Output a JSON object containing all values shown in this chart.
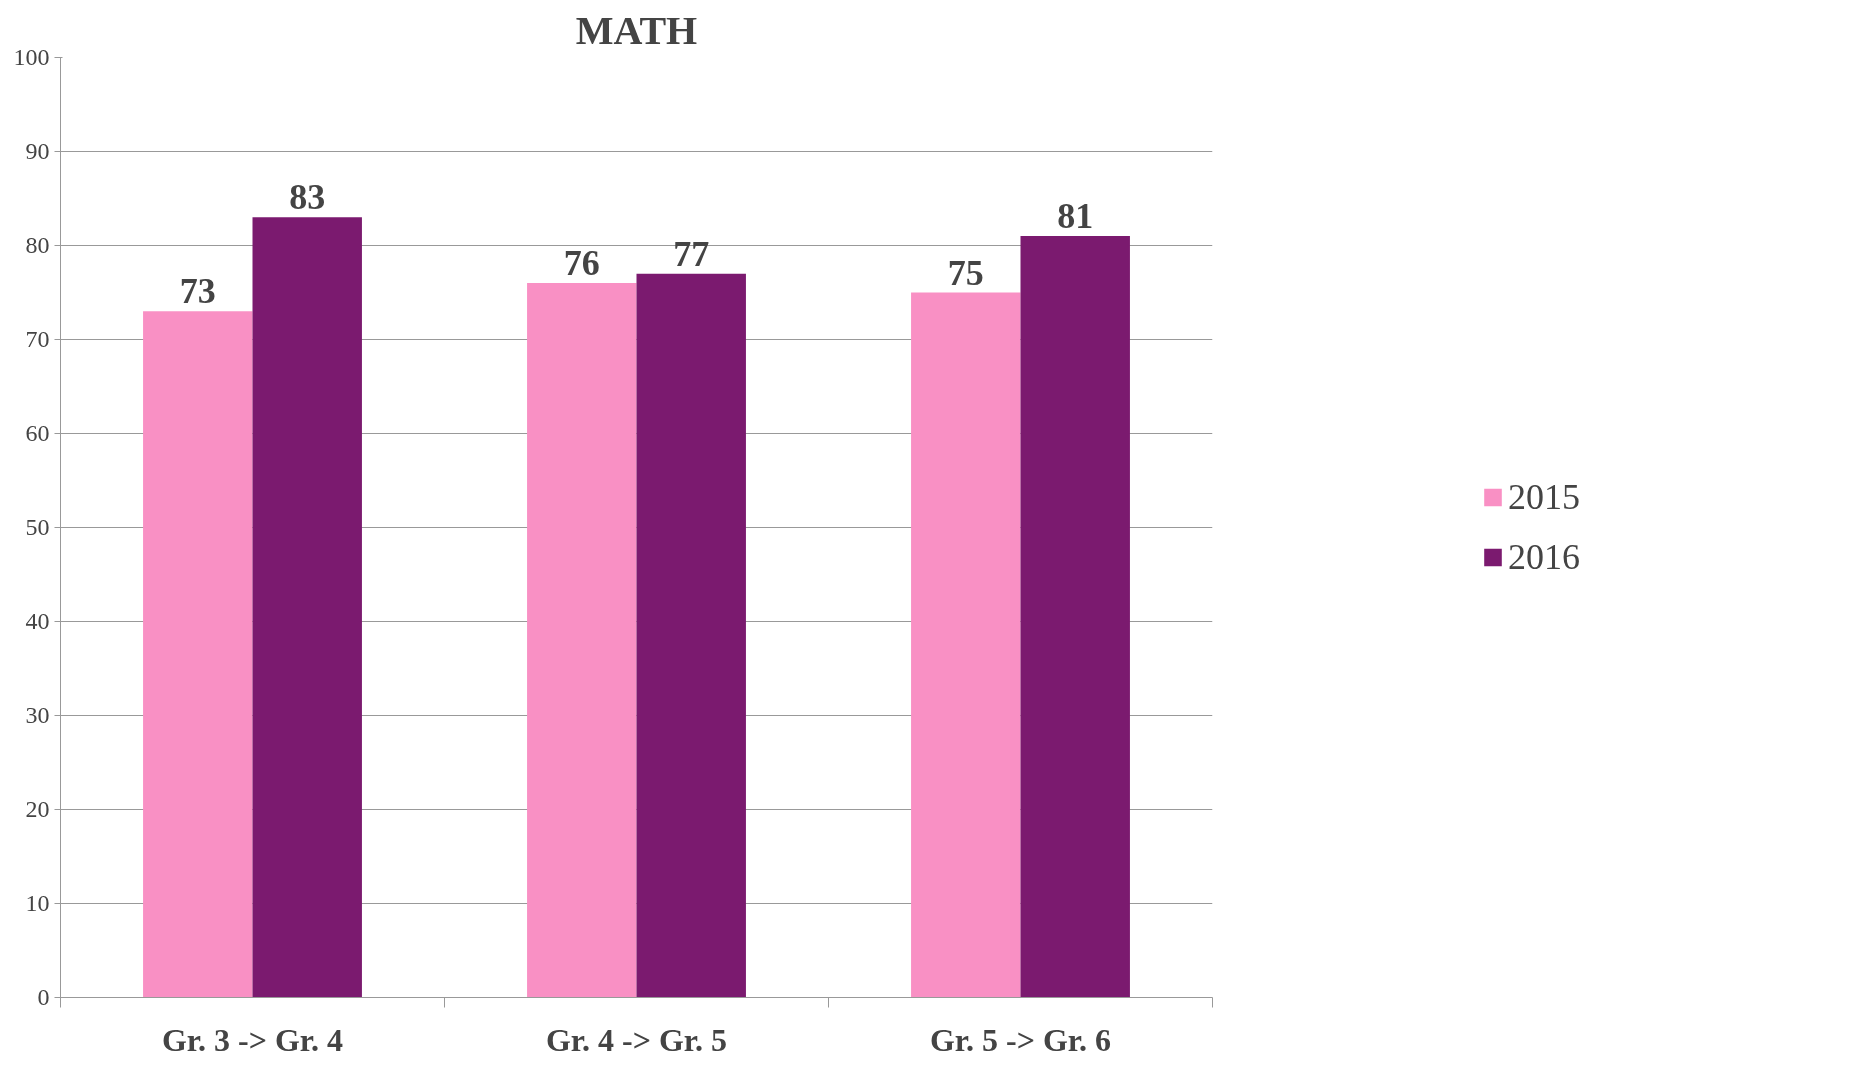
{
  "chart_data": {
    "type": "bar",
    "title": "MATH",
    "categories": [
      "Gr. 3 -> Gr. 4",
      "Gr. 4 -> Gr. 5",
      "Gr. 5 -> Gr. 6"
    ],
    "series": [
      {
        "name": "2015",
        "color": "#f990c4",
        "values": [
          73,
          76,
          75
        ]
      },
      {
        "name": "2016",
        "color": "#7b1a6f",
        "values": [
          83,
          77,
          81
        ]
      }
    ],
    "ylim": [
      0,
      100
    ],
    "yticks": [
      0,
      10,
      20,
      30,
      40,
      50,
      60,
      70,
      80,
      90,
      100
    ],
    "grid": "y",
    "legend": "right",
    "data_labels": true
  }
}
